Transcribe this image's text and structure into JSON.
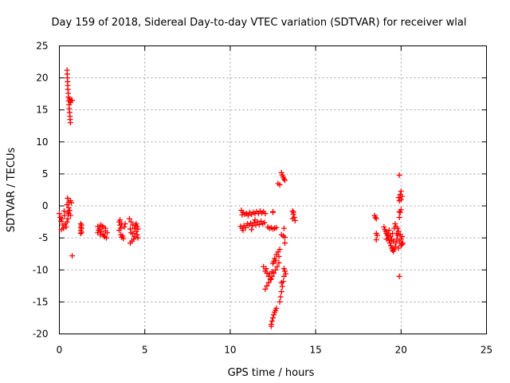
{
  "chart_data": {
    "type": "scatter",
    "title": "Day 159 of 2018, Sidereal Day-to-day VTEC variation (SDTVAR) for receiver wlal",
    "xlabel": "GPS time / hours",
    "ylabel": "SDTVAR / TECUs",
    "xlim": [
      0,
      25
    ],
    "ylim": [
      -20,
      25
    ],
    "xticks": [
      0,
      5,
      10,
      15,
      20,
      25
    ],
    "yticks": [
      -20,
      -15,
      -10,
      -5,
      0,
      5,
      10,
      15,
      20,
      25
    ],
    "xtick_labels": [
      "0",
      "5",
      "10",
      "15",
      "20",
      "25"
    ],
    "ytick_labels": [
      "-20",
      "-15",
      "-10",
      "-5",
      "0",
      "5",
      "10",
      "15",
      "20",
      "25"
    ],
    "grid": true,
    "marker": "plus",
    "color": "#ff0000",
    "series": [
      {
        "name": "SDTVAR",
        "points": [
          [
            0.0,
            -1.2
          ],
          [
            0.05,
            -1.8
          ],
          [
            0.1,
            -2.4
          ],
          [
            0.15,
            -2.0
          ],
          [
            0.2,
            -3.0
          ],
          [
            0.25,
            -3.5
          ],
          [
            0.3,
            -1.5
          ],
          [
            0.35,
            -2.8
          ],
          [
            0.4,
            -3.3
          ],
          [
            0.45,
            -2.5
          ],
          [
            0.12,
            -3.7
          ],
          [
            0.28,
            -0.8
          ],
          [
            0.5,
            -1.0
          ],
          [
            0.55,
            -0.3
          ],
          [
            0.45,
            0.2
          ],
          [
            0.55,
            0.6
          ],
          [
            0.65,
            0.8
          ],
          [
            0.7,
            0.5
          ],
          [
            0.6,
            -0.7
          ],
          [
            0.65,
            -1.5
          ],
          [
            0.5,
            -2.0
          ],
          [
            0.55,
            -1.2
          ],
          [
            0.48,
            1.2
          ],
          [
            0.45,
            21.2
          ],
          [
            0.46,
            20.6
          ],
          [
            0.47,
            20.0
          ],
          [
            0.48,
            19.4
          ],
          [
            0.49,
            18.8
          ],
          [
            0.5,
            18.2
          ],
          [
            0.52,
            17.6
          ],
          [
            0.53,
            17.0
          ],
          [
            0.55,
            16.4
          ],
          [
            0.57,
            15.8
          ],
          [
            0.58,
            15.2
          ],
          [
            0.6,
            14.6
          ],
          [
            0.62,
            14.0
          ],
          [
            0.63,
            13.5
          ],
          [
            0.65,
            13.0
          ],
          [
            0.7,
            16.5
          ],
          [
            0.65,
            16.2
          ],
          [
            0.75,
            16.5
          ],
          [
            0.6,
            16.7
          ],
          [
            0.75,
            -7.8
          ],
          [
            1.25,
            -2.8
          ],
          [
            1.25,
            -3.3
          ],
          [
            1.25,
            -3.8
          ],
          [
            1.25,
            -4.3
          ],
          [
            1.3,
            -3.0
          ],
          [
            1.3,
            -3.5
          ],
          [
            1.3,
            -4.1
          ],
          [
            2.25,
            -3.2
          ],
          [
            2.35,
            -3.6
          ],
          [
            2.45,
            -4.0
          ],
          [
            2.55,
            -4.4
          ],
          [
            2.65,
            -4.8
          ],
          [
            2.25,
            -4.2
          ],
          [
            2.4,
            -4.5
          ],
          [
            2.55,
            -3.3
          ],
          [
            2.7,
            -3.9
          ],
          [
            2.6,
            -4.7
          ],
          [
            2.4,
            -3.0
          ],
          [
            2.75,
            -5.0
          ],
          [
            2.3,
            -3.8
          ],
          [
            2.5,
            -3.1
          ],
          [
            2.8,
            -4.2
          ],
          [
            2.7,
            -3.5
          ],
          [
            3.5,
            -2.5
          ],
          [
            3.55,
            -3.0
          ],
          [
            3.6,
            -3.5
          ],
          [
            3.5,
            -3.8
          ],
          [
            3.65,
            -2.8
          ],
          [
            3.7,
            -4.7
          ],
          [
            3.75,
            -5.1
          ],
          [
            3.65,
            -4.9
          ],
          [
            3.8,
            -3.3
          ],
          [
            3.55,
            -2.2
          ],
          [
            3.85,
            -2.8
          ],
          [
            3.6,
            -4.5
          ],
          [
            4.1,
            -2.0
          ],
          [
            4.2,
            -2.5
          ],
          [
            4.3,
            -3.0
          ],
          [
            4.4,
            -3.5
          ],
          [
            4.5,
            -4.0
          ],
          [
            4.55,
            -4.5
          ],
          [
            4.6,
            -5.0
          ],
          [
            4.25,
            -5.5
          ],
          [
            4.15,
            -5.8
          ],
          [
            4.35,
            -5.2
          ],
          [
            4.45,
            -3.0
          ],
          [
            4.15,
            -3.6
          ],
          [
            4.3,
            -4.3
          ],
          [
            4.5,
            -2.8
          ],
          [
            4.6,
            -3.6
          ],
          [
            4.2,
            -4.2
          ],
          [
            4.4,
            -4.8
          ],
          [
            4.55,
            -3.2
          ],
          [
            10.65,
            -0.7
          ],
          [
            10.75,
            -1.0
          ],
          [
            10.85,
            -1.3
          ],
          [
            10.95,
            -1.2
          ],
          [
            11.05,
            -1.5
          ],
          [
            11.15,
            -1.0
          ],
          [
            11.25,
            -1.3
          ],
          [
            11.35,
            -1.0
          ],
          [
            11.45,
            -1.2
          ],
          [
            11.55,
            -0.9
          ],
          [
            11.65,
            -1.2
          ],
          [
            11.75,
            -0.8
          ],
          [
            11.85,
            -1.1
          ],
          [
            11.95,
            -0.9
          ],
          [
            12.05,
            -1.2
          ],
          [
            10.7,
            -1.4
          ],
          [
            10.6,
            -3.2
          ],
          [
            10.7,
            -3.5
          ],
          [
            10.8,
            -3.1
          ],
          [
            10.9,
            -3.4
          ],
          [
            11.0,
            -2.8
          ],
          [
            11.1,
            -3.0
          ],
          [
            11.2,
            -2.7
          ],
          [
            11.3,
            -3.1
          ],
          [
            11.4,
            -2.6
          ],
          [
            11.5,
            -3.0
          ],
          [
            11.6,
            -2.5
          ],
          [
            11.7,
            -2.9
          ],
          [
            11.8,
            -2.4
          ],
          [
            11.9,
            -2.8
          ],
          [
            12.0,
            -2.6
          ],
          [
            11.45,
            -2.2
          ],
          [
            10.75,
            -3.8
          ],
          [
            11.25,
            -3.7
          ],
          [
            12.2,
            -3.3
          ],
          [
            12.3,
            -3.5
          ],
          [
            12.4,
            -3.4
          ],
          [
            12.5,
            -3.6
          ],
          [
            12.6,
            -3.5
          ],
          [
            12.7,
            -3.4
          ],
          [
            12.5,
            -0.9
          ],
          [
            12.5,
            -1.0
          ],
          [
            12.8,
            3.5
          ],
          [
            12.9,
            3.3
          ],
          [
            13.0,
            5.2
          ],
          [
            13.05,
            4.8
          ],
          [
            13.1,
            4.5
          ],
          [
            13.15,
            4.2
          ],
          [
            13.2,
            4.0
          ],
          [
            13.0,
            -4.5
          ],
          [
            13.1,
            -4.7
          ],
          [
            13.2,
            -4.9
          ],
          [
            13.2,
            -5.8
          ],
          [
            13.15,
            -3.5
          ],
          [
            13.65,
            -0.8
          ],
          [
            13.7,
            -1.3
          ],
          [
            13.75,
            -1.8
          ],
          [
            13.8,
            -2.3
          ],
          [
            13.7,
            -1.0
          ],
          [
            13.65,
            -2.0
          ],
          [
            11.95,
            -9.5
          ],
          [
            12.05,
            -10.2
          ],
          [
            12.1,
            -9.8
          ],
          [
            12.15,
            -10.5
          ],
          [
            12.25,
            -11.0
          ],
          [
            12.3,
            -10.6
          ],
          [
            12.4,
            -11.4
          ],
          [
            12.45,
            -10.3
          ],
          [
            12.5,
            -9.0
          ],
          [
            12.55,
            -8.7
          ],
          [
            12.6,
            -8.2
          ],
          [
            12.65,
            -8.5
          ],
          [
            12.05,
            -13.0
          ],
          [
            12.15,
            -12.5
          ],
          [
            12.25,
            -12.0
          ],
          [
            12.35,
            -11.5
          ],
          [
            12.45,
            -11.0
          ],
          [
            12.55,
            -10.5
          ],
          [
            12.65,
            -10.0
          ],
          [
            12.75,
            -9.5
          ],
          [
            12.85,
            -8.9
          ],
          [
            12.7,
            -7.6
          ],
          [
            12.8,
            -7.2
          ],
          [
            12.9,
            -6.8
          ],
          [
            12.85,
            -7.9
          ],
          [
            12.4,
            -18.5
          ],
          [
            12.45,
            -18.0
          ],
          [
            12.5,
            -17.5
          ],
          [
            12.55,
            -17.0
          ],
          [
            12.6,
            -16.6
          ],
          [
            12.65,
            -16.3
          ],
          [
            12.7,
            -16.0
          ],
          [
            12.4,
            -18.8
          ],
          [
            12.9,
            -15.0
          ],
          [
            12.95,
            -14.2
          ],
          [
            13.0,
            -13.4
          ],
          [
            13.05,
            -12.6
          ],
          [
            13.1,
            -11.8
          ],
          [
            13.15,
            -11.0
          ],
          [
            13.2,
            -10.2
          ],
          [
            13.25,
            -10.6
          ],
          [
            13.0,
            -12.0
          ],
          [
            13.15,
            -9.8
          ],
          [
            18.45,
            -1.5
          ],
          [
            18.5,
            -1.8
          ],
          [
            18.55,
            -2.0
          ],
          [
            18.55,
            -4.3
          ],
          [
            18.6,
            -4.6
          ],
          [
            18.55,
            -5.3
          ],
          [
            19.0,
            -3.3
          ],
          [
            19.05,
            -3.7
          ],
          [
            19.1,
            -4.0
          ],
          [
            19.15,
            -4.3
          ],
          [
            19.2,
            -4.6
          ],
          [
            19.25,
            -5.0
          ],
          [
            19.3,
            -5.4
          ],
          [
            19.35,
            -5.8
          ],
          [
            19.4,
            -6.2
          ],
          [
            19.45,
            -6.6
          ],
          [
            19.5,
            -6.9
          ],
          [
            19.55,
            -7.1
          ],
          [
            19.6,
            -6.8
          ],
          [
            19.65,
            -6.4
          ],
          [
            19.7,
            -5.8
          ],
          [
            19.75,
            -5.2
          ],
          [
            19.8,
            -4.6
          ],
          [
            19.85,
            -4.0
          ],
          [
            19.6,
            -3.5
          ],
          [
            19.7,
            -3.2
          ],
          [
            19.5,
            -4.3
          ],
          [
            19.3,
            -3.8
          ],
          [
            19.4,
            -4.8
          ],
          [
            19.55,
            -5.5
          ],
          [
            19.15,
            -5.2
          ],
          [
            19.65,
            -2.8
          ],
          [
            19.75,
            -4.3
          ],
          [
            19.8,
            -3.5
          ],
          [
            19.25,
            -4.5
          ],
          [
            19.45,
            -5.3
          ],
          [
            19.9,
            -5.5
          ],
          [
            20.0,
            -5.2
          ],
          [
            20.05,
            -4.8
          ],
          [
            19.95,
            -4.5
          ],
          [
            20.1,
            -5.8
          ],
          [
            20.0,
            -6.2
          ],
          [
            19.85,
            -6.6
          ],
          [
            20.05,
            -6.0
          ],
          [
            19.9,
            -1.8
          ],
          [
            19.95,
            -1.0
          ],
          [
            20.0,
            -0.6
          ],
          [
            19.9,
            -0.9
          ],
          [
            19.85,
            1.3
          ],
          [
            19.95,
            1.8
          ],
          [
            20.0,
            2.3
          ],
          [
            20.05,
            1.5
          ],
          [
            19.9,
            0.8
          ],
          [
            20.0,
            1.0
          ],
          [
            19.9,
            4.8
          ],
          [
            19.9,
            -11.0
          ]
        ]
      }
    ]
  }
}
